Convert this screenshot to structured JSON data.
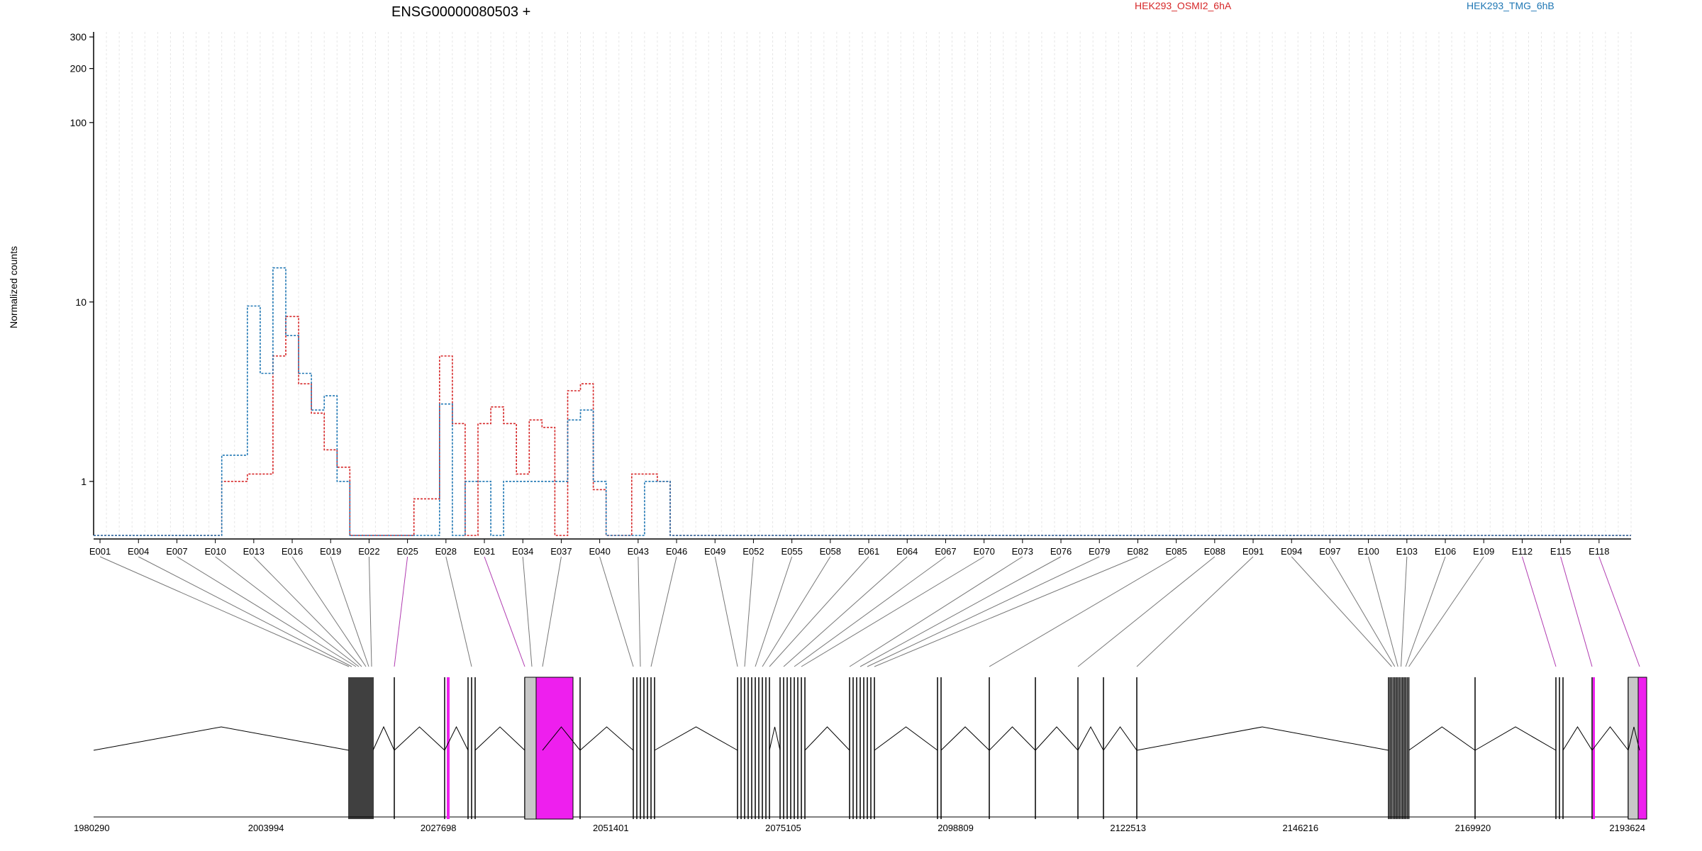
{
  "chart_data": {
    "type": "line",
    "title": "ENSG00000080503 +",
    "ylabel": "Normalized counts",
    "xlabel": "",
    "y_scale": "log",
    "ylim": [
      0.5,
      320
    ],
    "y_ticks": [
      "1",
      "10",
      "100",
      "200",
      "300"
    ],
    "grid": "vertical lines at each exon bin",
    "legend_position": "top",
    "legend": [
      {
        "name": "HEK293_OSMI2_6hA",
        "color": "#d62728"
      },
      {
        "name": "HEK293_TMG_6hB",
        "color": "#1f77b4"
      }
    ],
    "exon_labels": [
      "E001",
      "E004",
      "E007",
      "E010",
      "E013",
      "E016",
      "E019",
      "E022",
      "E025",
      "E028",
      "E031",
      "E034",
      "E037",
      "E040",
      "E043",
      "E046",
      "E049",
      "E052",
      "E055",
      "E058",
      "E061",
      "E064",
      "E067",
      "E070",
      "E073",
      "E076",
      "E079",
      "E082",
      "E085",
      "E088",
      "E091",
      "E094",
      "E097",
      "E100",
      "E103",
      "E106",
      "E109",
      "E112",
      "E115",
      "E118"
    ],
    "n_exon_bins": 120,
    "series": [
      {
        "name": "HEK293_OSMI2_6hA",
        "color": "#d62728",
        "values": [
          0.5,
          0.5,
          0.5,
          0.5,
          0.5,
          0.5,
          0.5,
          0.5,
          0.5,
          0.5,
          1,
          1,
          1.1,
          1.1,
          5,
          8.3,
          3.5,
          2.4,
          1.5,
          1.2,
          0.5,
          0.5,
          0.5,
          0.5,
          0.5,
          0.8,
          0.8,
          5,
          2.1,
          0.5,
          2.1,
          2.6,
          2.1,
          1.1,
          2.2,
          2.0,
          0.5,
          3.2,
          3.5,
          0.9,
          0.5,
          0.5,
          1.1,
          1.1,
          1,
          0.5,
          0.5,
          0.5,
          0.5,
          0.5,
          0.5,
          0.5,
          0.5,
          0.5,
          0.5,
          0.5,
          0.5,
          0.5,
          0.5,
          0.5,
          0.5,
          0.5,
          0.5,
          0.5,
          0.5,
          0.5,
          0.5,
          0.5,
          0.5,
          0.5,
          0.5,
          0.5,
          0.5,
          0.5,
          0.5,
          0.5,
          0.5,
          0.5,
          0.5,
          0.5,
          0.5,
          0.5,
          0.5,
          0.5,
          0.5,
          0.5,
          0.5,
          0.5,
          0.5,
          0.5,
          0.5,
          0.5,
          0.5,
          0.5,
          0.5,
          0.5,
          0.5,
          0.5,
          0.5,
          0.5,
          0.5,
          0.5,
          0.5,
          0.5,
          0.5,
          0.5,
          0.5,
          0.5,
          0.5,
          0.5,
          0.5,
          0.5,
          0.5,
          0.5,
          0.5,
          0.5,
          0.5,
          0.5,
          0.5,
          0.5
        ]
      },
      {
        "name": "HEK293_TMG_6hB",
        "color": "#1f77b4",
        "values": [
          0.5,
          0.5,
          0.5,
          0.5,
          0.5,
          0.5,
          0.5,
          0.5,
          0.5,
          0.5,
          1.4,
          1.4,
          9.5,
          4,
          15.5,
          6.5,
          4,
          2.5,
          3,
          1,
          0.5,
          0.5,
          0.5,
          0.5,
          0.5,
          0.5,
          0.5,
          2.7,
          0.5,
          1,
          1,
          0.5,
          1,
          1,
          1,
          1,
          1,
          2.2,
          2.5,
          1,
          0.5,
          0.5,
          0.5,
          1,
          1,
          0.5,
          0.5,
          0.5,
          0.5,
          0.5,
          0.5,
          0.5,
          0.5,
          0.5,
          0.5,
          0.5,
          0.5,
          0.5,
          0.5,
          0.5,
          0.5,
          0.5,
          0.5,
          0.5,
          0.5,
          0.5,
          0.5,
          0.5,
          0.5,
          0.5,
          0.5,
          0.5,
          0.5,
          0.5,
          0.5,
          0.5,
          0.5,
          0.5,
          0.5,
          0.5,
          0.5,
          0.5,
          0.5,
          0.5,
          0.5,
          0.5,
          0.5,
          0.5,
          0.5,
          0.5,
          0.5,
          0.5,
          0.5,
          0.5,
          0.5,
          0.5,
          0.5,
          0.5,
          0.5,
          0.5,
          0.5,
          0.5,
          0.5,
          0.5,
          0.5,
          0.5,
          0.5,
          0.5,
          0.5,
          0.5,
          0.5,
          0.5,
          0.5,
          0.5,
          0.5,
          0.5,
          0.5,
          0.5,
          0.5,
          0.5
        ]
      }
    ],
    "genomic_ticks": [
      "1980290",
      "2003994",
      "2027698",
      "2051401",
      "2075105",
      "2098809",
      "2122513",
      "2146216",
      "2169920",
      "2193624"
    ],
    "genomic_range": [
      1980290,
      2193624
    ]
  }
}
